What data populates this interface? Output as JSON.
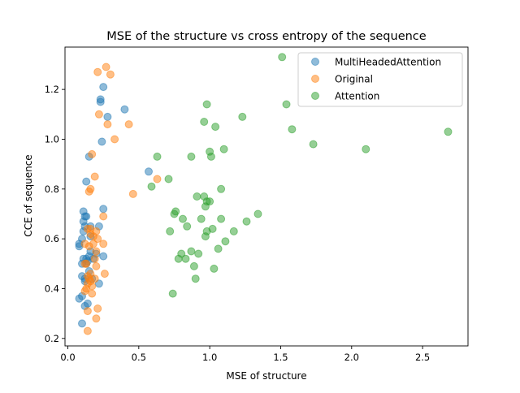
{
  "chart_data": {
    "type": "scatter",
    "title": "MSE of the structure vs cross entropy of the sequence",
    "xlabel": "MSE of structure",
    "ylabel": "CCE of sequence",
    "xlim": [
      -0.02,
      2.82
    ],
    "ylim": [
      0.17,
      1.37
    ],
    "xticks": [
      0.0,
      0.5,
      1.0,
      1.5,
      2.0,
      2.5
    ],
    "xtick_labels": [
      "0.0",
      "0.5",
      "1.0",
      "1.5",
      "2.0",
      "2.5"
    ],
    "yticks": [
      0.2,
      0.4,
      0.6,
      0.8,
      1.0,
      1.2
    ],
    "ytick_labels": [
      "0.2",
      "0.4",
      "0.6",
      "0.8",
      "1.0",
      "1.2"
    ],
    "grid": false,
    "legend_position": "top-right",
    "series": [
      {
        "name": "MultiHeadedAttention",
        "color": "#1f77b4",
        "alpha": 0.5,
        "points": [
          [
            0.1,
            0.26
          ],
          [
            0.08,
            0.36
          ],
          [
            0.1,
            0.37
          ],
          [
            0.12,
            0.33
          ],
          [
            0.14,
            0.34
          ],
          [
            0.08,
            0.57
          ],
          [
            0.08,
            0.58
          ],
          [
            0.1,
            0.5
          ],
          [
            0.11,
            0.52
          ],
          [
            0.12,
            0.43
          ],
          [
            0.1,
            0.45
          ],
          [
            0.12,
            0.44
          ],
          [
            0.13,
            0.5
          ],
          [
            0.13,
            0.52
          ],
          [
            0.14,
            0.51
          ],
          [
            0.15,
            0.53
          ],
          [
            0.16,
            0.55
          ],
          [
            0.18,
            0.52
          ],
          [
            0.2,
            0.54
          ],
          [
            0.17,
            0.44
          ],
          [
            0.15,
            0.47
          ],
          [
            0.22,
            0.42
          ],
          [
            0.25,
            0.53
          ],
          [
            0.1,
            0.6
          ],
          [
            0.11,
            0.63
          ],
          [
            0.12,
            0.65
          ],
          [
            0.11,
            0.67
          ],
          [
            0.13,
            0.69
          ],
          [
            0.12,
            0.69
          ],
          [
            0.11,
            0.71
          ],
          [
            0.16,
            0.61
          ],
          [
            0.16,
            0.65
          ],
          [
            0.22,
            0.65
          ],
          [
            0.25,
            0.72
          ],
          [
            0.13,
            0.83
          ],
          [
            0.15,
            0.93
          ],
          [
            0.24,
            0.99
          ],
          [
            0.28,
            1.09
          ],
          [
            0.23,
            1.15
          ],
          [
            0.23,
            1.16
          ],
          [
            0.25,
            1.21
          ],
          [
            0.4,
            1.12
          ],
          [
            0.57,
            0.87
          ]
        ]
      },
      {
        "name": "Original",
        "color": "#ff7f0e",
        "alpha": 0.5,
        "points": [
          [
            0.14,
            0.23
          ],
          [
            0.14,
            0.31
          ],
          [
            0.21,
            0.32
          ],
          [
            0.2,
            0.28
          ],
          [
            0.12,
            0.39
          ],
          [
            0.13,
            0.4
          ],
          [
            0.14,
            0.42
          ],
          [
            0.17,
            0.41
          ],
          [
            0.17,
            0.38
          ],
          [
            0.19,
            0.44
          ],
          [
            0.15,
            0.44
          ],
          [
            0.14,
            0.45
          ],
          [
            0.16,
            0.43
          ],
          [
            0.16,
            0.46
          ],
          [
            0.26,
            0.46
          ],
          [
            0.2,
            0.49
          ],
          [
            0.12,
            0.5
          ],
          [
            0.13,
            0.5
          ],
          [
            0.19,
            0.52
          ],
          [
            0.2,
            0.55
          ],
          [
            0.12,
            0.58
          ],
          [
            0.15,
            0.57
          ],
          [
            0.18,
            0.58
          ],
          [
            0.21,
            0.6
          ],
          [
            0.16,
            0.62
          ],
          [
            0.18,
            0.61
          ],
          [
            0.2,
            0.63
          ],
          [
            0.25,
            0.58
          ],
          [
            0.14,
            0.64
          ],
          [
            0.16,
            0.64
          ],
          [
            0.25,
            0.69
          ],
          [
            0.15,
            0.79
          ],
          [
            0.16,
            0.8
          ],
          [
            0.19,
            0.85
          ],
          [
            0.17,
            0.94
          ],
          [
            0.22,
            1.1
          ],
          [
            0.28,
            1.06
          ],
          [
            0.33,
            1.0
          ],
          [
            0.43,
            1.06
          ],
          [
            0.46,
            0.78
          ],
          [
            0.63,
            0.84
          ],
          [
            0.21,
            1.27
          ],
          [
            0.27,
            1.29
          ],
          [
            0.3,
            1.26
          ]
        ]
      },
      {
        "name": "Attention",
        "color": "#2ca02c",
        "alpha": 0.5,
        "points": [
          [
            0.74,
            0.38
          ],
          [
            0.87,
            0.55
          ],
          [
            0.89,
            0.49
          ],
          [
            0.9,
            0.44
          ],
          [
            0.8,
            0.54
          ],
          [
            0.78,
            0.52
          ],
          [
            0.83,
            0.52
          ],
          [
            0.92,
            0.54
          ],
          [
            1.03,
            0.48
          ],
          [
            1.11,
            0.59
          ],
          [
            1.06,
            0.56
          ],
          [
            0.72,
            0.63
          ],
          [
            0.81,
            0.68
          ],
          [
            0.84,
            0.65
          ],
          [
            0.94,
            0.68
          ],
          [
            0.97,
            0.61
          ],
          [
            0.98,
            0.63
          ],
          [
            1.02,
            0.64
          ],
          [
            1.08,
            0.68
          ],
          [
            1.17,
            0.63
          ],
          [
            1.26,
            0.67
          ],
          [
            1.34,
            0.7
          ],
          [
            0.75,
            0.7
          ],
          [
            0.76,
            0.71
          ],
          [
            0.91,
            0.77
          ],
          [
            0.96,
            0.77
          ],
          [
            0.98,
            0.75
          ],
          [
            0.97,
            0.73
          ],
          [
            1.0,
            0.75
          ],
          [
            1.08,
            0.8
          ],
          [
            0.59,
            0.81
          ],
          [
            0.71,
            0.84
          ],
          [
            0.63,
            0.93
          ],
          [
            0.87,
            0.93
          ],
          [
            1.0,
            0.95
          ],
          [
            1.01,
            0.93
          ],
          [
            1.1,
            0.96
          ],
          [
            0.96,
            1.07
          ],
          [
            1.04,
            1.05
          ],
          [
            0.98,
            1.14
          ],
          [
            1.23,
            1.09
          ],
          [
            1.51,
            1.33
          ],
          [
            1.54,
            1.14
          ],
          [
            1.58,
            1.04
          ],
          [
            1.73,
            0.98
          ],
          [
            2.1,
            0.96
          ],
          [
            2.68,
            1.03
          ]
        ]
      }
    ]
  }
}
